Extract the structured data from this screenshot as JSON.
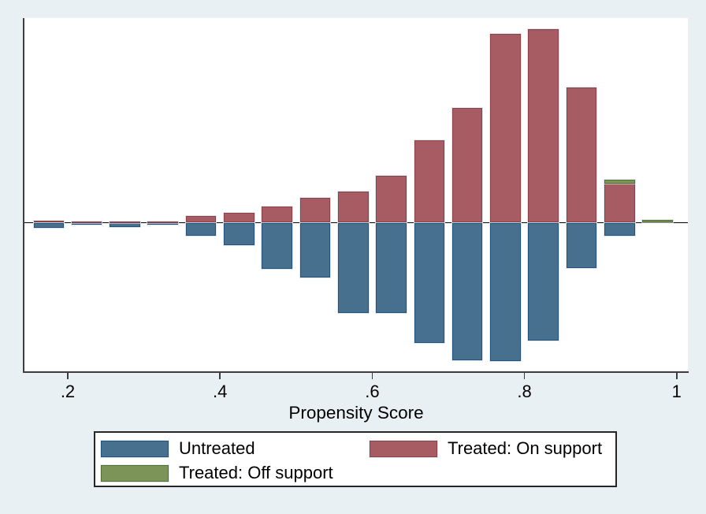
{
  "chart_data": {
    "type": "bar",
    "subtype": "mirrored-histogram",
    "title": "",
    "xlabel": "Propensity Score",
    "ylabel": "",
    "y_axis_labeled": false,
    "grid": false,
    "legend_position": "bottom",
    "xlim": [
      0.142,
      1.017
    ],
    "bin_width": 0.05,
    "bin_centers": [
      0.175,
      0.225,
      0.275,
      0.325,
      0.375,
      0.425,
      0.475,
      0.525,
      0.575,
      0.625,
      0.675,
      0.725,
      0.775,
      0.825,
      0.875,
      0.925,
      0.975
    ],
    "x_ticks": [
      {
        "value": 0.2,
        "label": ".2"
      },
      {
        "value": 0.4,
        "label": ".4"
      },
      {
        "value": 0.6,
        "label": ".6"
      },
      {
        "value": 0.8,
        "label": ".8"
      },
      {
        "value": 1.0,
        "label": "1"
      }
    ],
    "series": [
      {
        "name": "Untreated",
        "direction": "down",
        "color": "#47708e",
        "border_color": "#23527c",
        "values": [
          0.0057,
          0.0026,
          0.0048,
          0.0009,
          0.0148,
          0.0245,
          0.0507,
          0.0611,
          0.0996,
          0.0996,
          0.1328,
          0.1528,
          0.1537,
          0.131,
          0.0498,
          0.014,
          0
        ]
      },
      {
        "name": "Treated: On support",
        "direction": "up",
        "color": "#a65c62",
        "border_color": "#8b4149",
        "values": [
          0.0022,
          0.0017,
          0.0017,
          0.0017,
          0.007,
          0.0105,
          0.0175,
          0.0279,
          0.0349,
          0.0524,
          0.0917,
          0.1275,
          0.2096,
          0.214,
          0.1502,
          0.0428,
          0
        ]
      },
      {
        "name": "Treated: Off support",
        "direction": "up",
        "stacked_on": "Treated: On support",
        "color": "#7d9458",
        "border_color": "#546f2f",
        "values": [
          0,
          0,
          0,
          0,
          0,
          0,
          0,
          0,
          0,
          0,
          0,
          0,
          0,
          0,
          0,
          0.0052,
          0.0031
        ]
      }
    ],
    "legend_order": [
      "Untreated",
      "Treated: On support",
      "Treated: Off support"
    ],
    "colors": {
      "figure_background": "#e9f0f3",
      "plot_background": "#ffffff",
      "axis": "#3d3d3d",
      "zero_line": "#000000"
    }
  }
}
